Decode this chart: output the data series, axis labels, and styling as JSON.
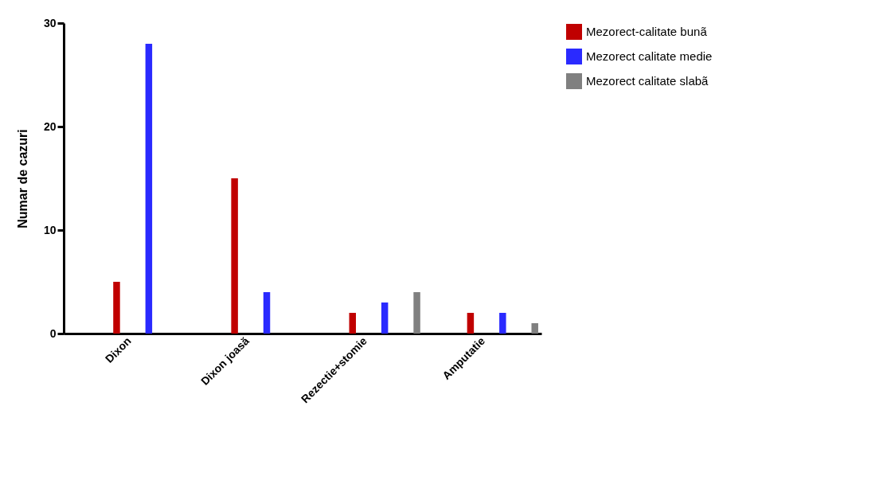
{
  "chart_data": {
    "type": "bar",
    "ylabel": "Numar de cazuri",
    "categories": [
      "Dixon",
      "Dixon joasă",
      "Rezectie+stomie",
      "Amputatie"
    ],
    "series": [
      {
        "name": "Mezorect-calitate bunã",
        "color": "#c00000",
        "values": [
          5,
          15,
          2,
          2
        ]
      },
      {
        "name": "Mezorect calitate medie",
        "color": "#2a2aff",
        "values": [
          28,
          4,
          3,
          2
        ]
      },
      {
        "name": "Mezorect calitate slabã",
        "color": "#808080",
        "values": [
          0,
          0,
          4,
          1
        ]
      }
    ],
    "ylim": [
      0,
      30
    ],
    "yticks": [
      0,
      10,
      20,
      30
    ],
    "grid": false,
    "legend": "top right"
  }
}
